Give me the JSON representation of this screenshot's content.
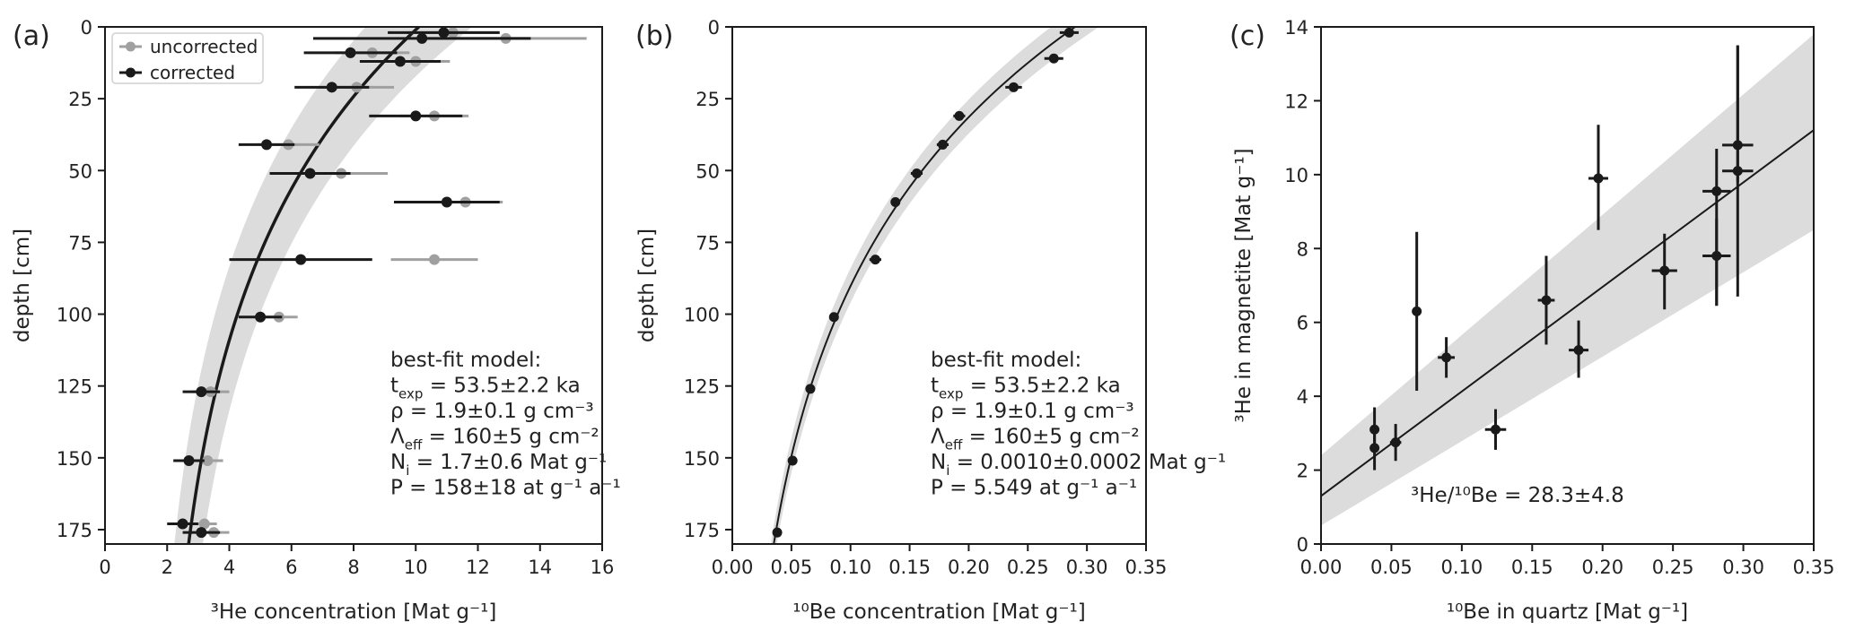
{
  "chart_data": [
    {
      "type": "scatter",
      "panel_label": "(a)",
      "xlabel": "³He concentration [Mat g⁻¹]",
      "ylabel": "depth [cm]",
      "xlim": [
        0,
        16
      ],
      "ylim": [
        180,
        0
      ],
      "xticks": [
        "0",
        "2",
        "4",
        "6",
        "8",
        "10",
        "12",
        "14",
        "16"
      ],
      "xtick_values": [
        0,
        2,
        4,
        6,
        8,
        10,
        12,
        14,
        16
      ],
      "yticks": [
        "0",
        "25",
        "50",
        "75",
        "100",
        "125",
        "150",
        "175"
      ],
      "ytick_values": [
        0,
        25,
        50,
        75,
        100,
        125,
        150,
        175
      ],
      "legend": {
        "position": "top-left",
        "entries": [
          {
            "label": "uncorrected",
            "color": "#a0a0a0"
          },
          {
            "label": "corrected",
            "color": "#1a1a1a"
          }
        ]
      },
      "model": {
        "Ni": 1.7,
        "A": 8.4,
        "rho": 1.9,
        "lambda": 160,
        "band_frac": 0.17
      },
      "series": [
        {
          "name": "uncorrected",
          "color": "#a0a0a0",
          "points": [
            {
              "x": 11.2,
              "y": 2,
              "xerr": 1.5
            },
            {
              "x": 12.9,
              "y": 4,
              "xerr": 2.6
            },
            {
              "x": 8.6,
              "y": 9,
              "xerr": 1.2
            },
            {
              "x": 10.0,
              "y": 12,
              "xerr": 1.1
            },
            {
              "x": 8.1,
              "y": 21,
              "xerr": 1.2
            },
            {
              "x": 10.6,
              "y": 31,
              "xerr": 1.1
            },
            {
              "x": 5.9,
              "y": 41,
              "xerr": 1.0
            },
            {
              "x": 7.6,
              "y": 51,
              "xerr": 1.5
            },
            {
              "x": 11.6,
              "y": 61,
              "xerr": 1.2
            },
            {
              "x": 10.6,
              "y": 81,
              "xerr": 1.4
            },
            {
              "x": 5.6,
              "y": 101,
              "xerr": 0.6
            },
            {
              "x": 3.4,
              "y": 127,
              "xerr": 0.6
            },
            {
              "x": 3.3,
              "y": 151,
              "xerr": 0.5
            },
            {
              "x": 3.2,
              "y": 173,
              "xerr": 0.4
            },
            {
              "x": 3.5,
              "y": 176,
              "xerr": 0.5
            }
          ]
        },
        {
          "name": "corrected",
          "color": "#1a1a1a",
          "points": [
            {
              "x": 10.9,
              "y": 2,
              "xerr": 1.8
            },
            {
              "x": 10.2,
              "y": 4,
              "xerr": 3.5
            },
            {
              "x": 7.9,
              "y": 9,
              "xerr": 1.5
            },
            {
              "x": 9.5,
              "y": 12,
              "xerr": 1.3
            },
            {
              "x": 7.3,
              "y": 21,
              "xerr": 1.2
            },
            {
              "x": 10.0,
              "y": 31,
              "xerr": 1.5
            },
            {
              "x": 5.2,
              "y": 41,
              "xerr": 0.9
            },
            {
              "x": 6.6,
              "y": 51,
              "xerr": 1.3
            },
            {
              "x": 11.0,
              "y": 61,
              "xerr": 1.7
            },
            {
              "x": 6.3,
              "y": 81,
              "xerr": 2.3
            },
            {
              "x": 5.0,
              "y": 101,
              "xerr": 0.7
            },
            {
              "x": 3.1,
              "y": 127,
              "xerr": 0.6
            },
            {
              "x": 2.7,
              "y": 151,
              "xerr": 0.5
            },
            {
              "x": 2.5,
              "y": 173,
              "xerr": 0.5
            },
            {
              "x": 3.1,
              "y": 176,
              "xerr": 0.6
            }
          ]
        }
      ],
      "annotation": [
        {
          "main": "best-fit model:",
          "sub": "",
          "rest": ""
        },
        {
          "main": "t",
          "sub": "exp",
          "rest": " = 53.5±2.2 ka"
        },
        {
          "main": "ρ = 1.9±0.1 g cm⁻³",
          "sub": "",
          "rest": ""
        },
        {
          "main": "Λ",
          "sub": "eff",
          "rest": " = 160±5 g cm⁻²"
        },
        {
          "main": "N",
          "sub": "i",
          "rest": " = 1.7±0.6 Mat g⁻¹"
        },
        {
          "main": "P = 158±18 at g⁻¹ a⁻¹",
          "sub": "",
          "rest": ""
        }
      ]
    },
    {
      "type": "scatter",
      "panel_label": "(b)",
      "xlabel": "¹⁰Be concentration [Mat g⁻¹]",
      "ylabel": "depth [cm]",
      "xlim": [
        0,
        0.35
      ],
      "ylim": [
        180,
        0
      ],
      "xticks": [
        "0.00",
        "0.05",
        "0.10",
        "0.15",
        "0.20",
        "0.25",
        "0.30",
        "0.35"
      ],
      "xtick_values": [
        0,
        0.05,
        0.1,
        0.15,
        0.2,
        0.25,
        0.3,
        0.35
      ],
      "yticks": [
        "0",
        "25",
        "50",
        "75",
        "100",
        "125",
        "150",
        "175"
      ],
      "ytick_values": [
        0,
        25,
        50,
        75,
        100,
        125,
        150,
        175
      ],
      "model": {
        "Ni": 0.001,
        "A": 0.289,
        "rho": 1.9,
        "lambda": 160,
        "band_frac": 0.07
      },
      "series": [
        {
          "name": "corrected",
          "color": "#1a1a1a",
          "points": [
            {
              "x": 0.285,
              "y": 2,
              "xerr": 0.008
            },
            {
              "x": 0.272,
              "y": 11,
              "xerr": 0.008
            },
            {
              "x": 0.238,
              "y": 21,
              "xerr": 0.007
            },
            {
              "x": 0.192,
              "y": 31,
              "xerr": 0.005
            },
            {
              "x": 0.178,
              "y": 41,
              "xerr": 0.005
            },
            {
              "x": 0.156,
              "y": 51,
              "xerr": 0.005
            },
            {
              "x": 0.138,
              "y": 61,
              "xerr": 0.004
            },
            {
              "x": 0.121,
              "y": 81,
              "xerr": 0.005
            },
            {
              "x": 0.086,
              "y": 101,
              "xerr": 0.004
            },
            {
              "x": 0.066,
              "y": 126,
              "xerr": 0.002
            },
            {
              "x": 0.051,
              "y": 151,
              "xerr": 0.002
            },
            {
              "x": 0.038,
              "y": 176,
              "xerr": 0.002
            }
          ]
        }
      ],
      "annotation": [
        {
          "main": "best-fit model:",
          "sub": "",
          "rest": ""
        },
        {
          "main": "t",
          "sub": "exp",
          "rest": " = 53.5±2.2 ka"
        },
        {
          "main": "ρ = 1.9±0.1 g cm⁻³",
          "sub": "",
          "rest": ""
        },
        {
          "main": "Λ",
          "sub": "eff",
          "rest": " = 160±5 g cm⁻²"
        },
        {
          "main": "N",
          "sub": "i",
          "rest": " = 0.0010±0.0002 Mat g⁻¹"
        },
        {
          "main": "P = 5.549 at g⁻¹ a⁻¹",
          "sub": "",
          "rest": ""
        }
      ]
    },
    {
      "type": "scatter",
      "panel_label": "(c)",
      "xlabel": "¹⁰Be in quartz [Mat g⁻¹]",
      "ylabel": "³He in magnetite [Mat g⁻¹]",
      "xlim": [
        0,
        0.35
      ],
      "ylim": [
        0,
        14
      ],
      "xticks": [
        "0.00",
        "0.05",
        "0.10",
        "0.15",
        "0.20",
        "0.25",
        "0.30",
        "0.35"
      ],
      "xtick_values": [
        0,
        0.05,
        0.1,
        0.15,
        0.2,
        0.25,
        0.3,
        0.35
      ],
      "yticks": [
        "0",
        "2",
        "4",
        "6",
        "8",
        "10",
        "12",
        "14"
      ],
      "ytick_values": [
        0,
        2,
        4,
        6,
        8,
        10,
        12,
        14
      ],
      "fit": {
        "intercept": 1.3,
        "slope": 28.3,
        "band_at_x0": [
          0.5,
          2.4
        ],
        "band_at_xmax": [
          8.5,
          13.8
        ]
      },
      "series": [
        {
          "name": "samples",
          "color": "#1a1a1a",
          "points": [
            {
              "x": 0.038,
              "y": 3.1,
              "xerr": 0.002,
              "ylo": 2.5,
              "yhi": 3.7
            },
            {
              "x": 0.038,
              "y": 2.6,
              "xerr": 0.002,
              "ylo": 2.0,
              "yhi": 3.2
            },
            {
              "x": 0.053,
              "y": 2.75,
              "xerr": 0.004,
              "ylo": 2.25,
              "yhi": 3.25
            },
            {
              "x": 0.068,
              "y": 6.3,
              "xerr": 0.002,
              "ylo": 4.15,
              "yhi": 8.45
            },
            {
              "x": 0.089,
              "y": 5.05,
              "xerr": 0.006,
              "ylo": 4.5,
              "yhi": 5.6
            },
            {
              "x": 0.124,
              "y": 3.1,
              "xerr": 0.0075,
              "ylo": 2.55,
              "yhi": 3.65
            },
            {
              "x": 0.16,
              "y": 6.6,
              "xerr": 0.006,
              "ylo": 5.4,
              "yhi": 7.8
            },
            {
              "x": 0.183,
              "y": 5.25,
              "xerr": 0.007,
              "ylo": 4.5,
              "yhi": 6.05
            },
            {
              "x": 0.197,
              "y": 9.9,
              "xerr": 0.007,
              "ylo": 8.5,
              "yhi": 11.35
            },
            {
              "x": 0.244,
              "y": 7.4,
              "xerr": 0.009,
              "ylo": 6.35,
              "yhi": 8.4
            },
            {
              "x": 0.281,
              "y": 9.55,
              "xerr": 0.01,
              "ylo": 6.45,
              "yhi": 10.7
            },
            {
              "x": 0.281,
              "y": 7.8,
              "xerr": 0.01,
              "ylo": 6.45,
              "yhi": 8.8
            },
            {
              "x": 0.296,
              "y": 10.8,
              "xerr": 0.011,
              "ylo": 9.8,
              "yhi": 13.5
            },
            {
              "x": 0.296,
              "y": 10.1,
              "xerr": 0.011,
              "ylo": 6.7,
              "yhi": 13.5
            }
          ]
        }
      ],
      "annotation": [
        {
          "main": "³He/¹⁰Be = 28.3±4.8",
          "sub": "",
          "rest": ""
        }
      ]
    }
  ]
}
